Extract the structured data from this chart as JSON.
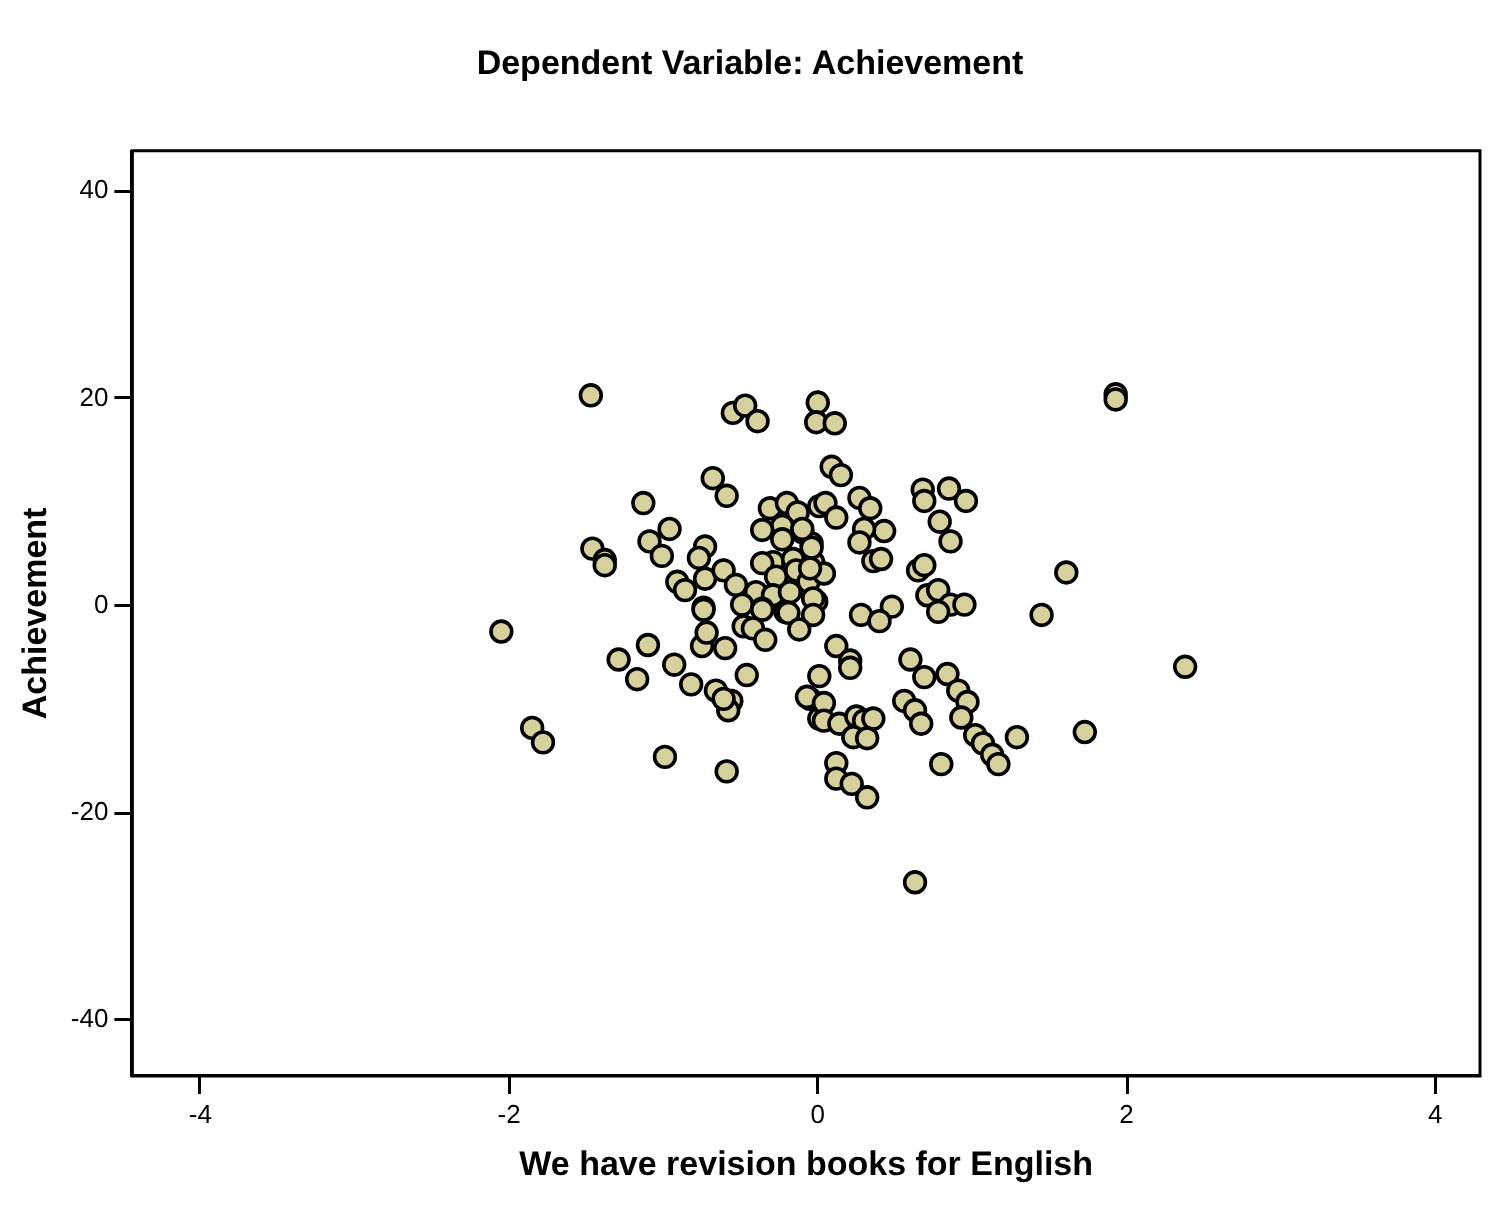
{
  "chart_data": {
    "type": "scatter",
    "title": "Dependent Variable: Achievement",
    "xlabel": "We have revision books for English",
    "ylabel": "Achievement",
    "xlim": [
      -4.44,
      4.29
    ],
    "ylim": [
      -45.4,
      43.9
    ],
    "xticks": [
      -4,
      -2,
      0,
      2,
      4
    ],
    "yticks": [
      -40,
      -20,
      0,
      20,
      40
    ],
    "grid": false,
    "legend": false,
    "marker": "circle",
    "series": [
      {
        "color": "#d6d09c",
        "x": [
          -1.47,
          -0.55,
          -0.47,
          -0.39,
          0.0,
          -0.01,
          -0.68,
          -0.59,
          -1.13,
          -0.96,
          -1.09,
          -1.46,
          -1.38,
          -1.38,
          -1.01,
          -0.73,
          -0.77,
          -0.91,
          -0.73,
          -0.61,
          -0.53,
          -0.74,
          -0.86,
          -0.31,
          -0.2,
          -0.13,
          -0.23,
          -0.36,
          -0.1,
          -0.23,
          -0.04,
          -0.29,
          -0.16,
          -0.36,
          -0.27,
          -0.14,
          -0.03,
          -0.06,
          -0.4,
          -0.29,
          -0.18,
          -0.01,
          -0.49,
          -0.21,
          -0.36,
          0.01,
          1.93,
          1.93,
          0.11,
          0.09,
          0.15,
          0.27,
          0.05,
          0.34,
          0.12,
          0.68,
          0.69,
          0.85,
          0.96,
          0.79,
          0.86,
          0.43,
          0.3,
          0.27,
          0.36,
          0.41,
          -0.04,
          -0.1,
          0.65,
          0.69,
          1.61,
          0.04,
          -0.05,
          0.71,
          0.78,
          0.86,
          0.95,
          0.78,
          0.48,
          0.28,
          1.45,
          -0.03,
          -0.03,
          -2.05,
          -1.85,
          -1.78,
          -0.99,
          -0.59,
          -1.29,
          -1.1,
          -1.17,
          -0.93,
          -0.82,
          -0.75,
          -0.72,
          -0.6,
          -0.66,
          -0.56,
          -0.58,
          -0.61,
          -0.46,
          -0.74,
          -0.36,
          -0.48,
          -0.42,
          -0.34,
          -0.19,
          -0.12,
          0.01,
          -0.05,
          0.01,
          2.38,
          1.73,
          1.29,
          0.63,
          0.8,
          0.4,
          0.12,
          0.21,
          0.21,
          0.6,
          0.69,
          0.84,
          0.91,
          0.97,
          0.93,
          0.56,
          0.63,
          0.67,
          1.02,
          1.07,
          1.13,
          1.17,
          -0.07,
          0.04,
          0.04,
          0.14,
          0.25,
          0.3,
          0.36,
          0.23,
          0.32,
          0.12,
          0.12,
          0.22,
          0.32
        ],
        "values": [
          20.3,
          18.6,
          19.3,
          17.8,
          19.6,
          17.7,
          12.3,
          10.6,
          9.9,
          7.4,
          6.2,
          5.5,
          4.4,
          3.9,
          4.8,
          5.7,
          4.6,
          2.3,
          2.6,
          3.4,
          2.0,
          -0.2,
          1.5,
          9.4,
          9.9,
          9.0,
          7.7,
          7.3,
          7.1,
          6.4,
          6.0,
          4.2,
          4.5,
          4.1,
          2.8,
          3.4,
          4.2,
          2.3,
          1.3,
          1.0,
          1.3,
          0.4,
          0.1,
          -0.6,
          -0.3,
          9.6,
          20.4,
          19.9,
          17.6,
          13.4,
          12.6,
          10.4,
          9.9,
          9.4,
          8.5,
          11.2,
          10.1,
          11.3,
          10.1,
          8.1,
          6.2,
          7.2,
          7.4,
          6.1,
          4.3,
          4.5,
          5.6,
          7.4,
          3.4,
          3.9,
          3.2,
          3.1,
          3.6,
          1.0,
          1.5,
          0.1,
          0.1,
          -0.6,
          -0.1,
          -0.9,
          -0.9,
          0.7,
          -0.9,
          -2.5,
          -11.8,
          -13.2,
          -14.6,
          -16.0,
          -5.2,
          -3.8,
          -7.1,
          -5.7,
          -7.6,
          -3.9,
          -2.6,
          -4.1,
          -8.2,
          -9.2,
          -10.1,
          -9.0,
          -6.7,
          -0.4,
          -0.4,
          -2.0,
          -2.2,
          -3.3,
          -0.7,
          -2.3,
          -6.8,
          -9.0,
          -10.9,
          -5.9,
          -12.2,
          -12.7,
          -26.7,
          -15.3,
          -1.5,
          -3.9,
          -5.3,
          -6.0,
          -5.2,
          -6.9,
          -6.6,
          -8.2,
          -9.3,
          -10.8,
          -9.2,
          -10.1,
          -11.4,
          -12.5,
          -13.3,
          -14.4,
          -15.3,
          -8.8,
          -9.4,
          -11.1,
          -11.4,
          -10.7,
          -11.1,
          -10.9,
          -12.7,
          -12.8,
          -15.2,
          -16.7,
          -17.2,
          -18.5
        ]
      }
    ]
  }
}
